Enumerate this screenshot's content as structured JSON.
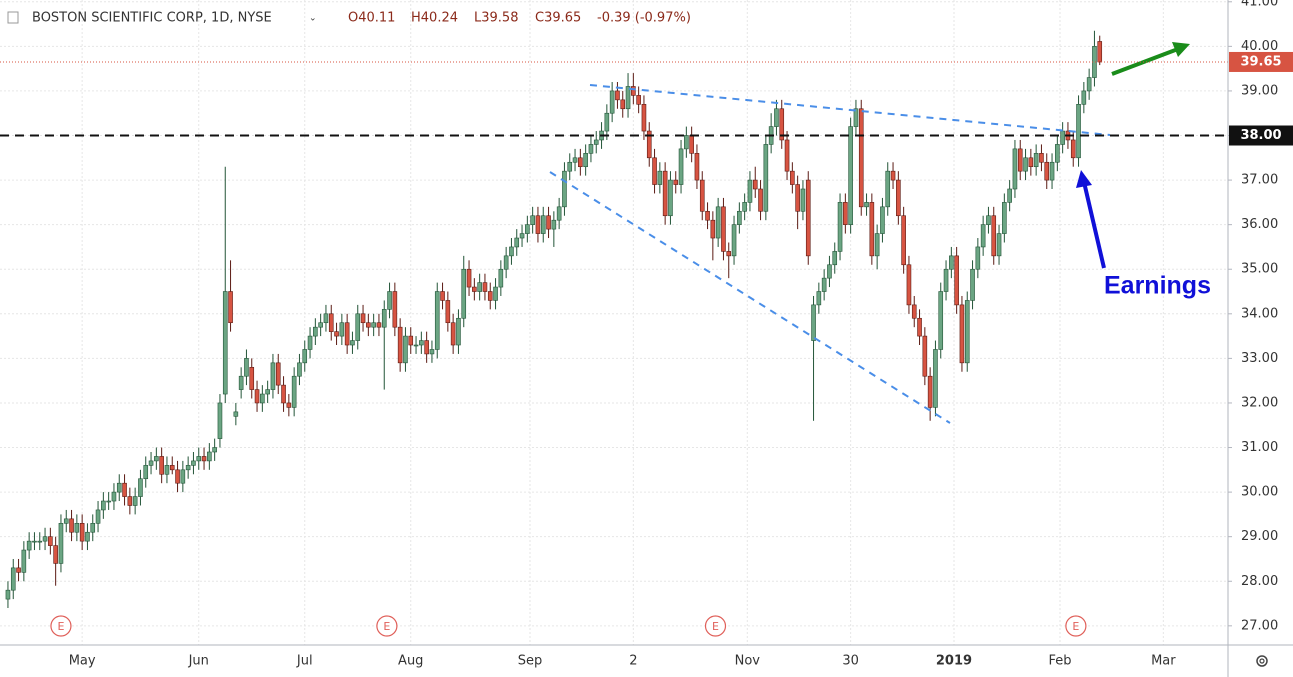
{
  "chart_data": {
    "type": "candlestick",
    "title": "BOSTON SCIENTIFIC CORP, 1D, NYSE",
    "ohlc_readout": [
      "O40.11",
      "H40.24",
      "L39.58",
      "C39.65",
      "-0.39 (-0.97%)"
    ],
    "annotations": [
      "Earnings"
    ],
    "up_color": "#6ba583",
    "down_color": "#d75442",
    "xlim": [
      -1.5,
      230.2
    ],
    "xticks": [
      {
        "value": 14,
        "label": "May"
      },
      {
        "value": 36,
        "label": "Jun"
      },
      {
        "value": 56,
        "label": "Jul"
      },
      {
        "value": 76,
        "label": "Aug"
      },
      {
        "value": 98.5,
        "label": "Sep"
      },
      {
        "value": 118,
        "label": "2"
      },
      {
        "value": 139.5,
        "label": "Nov"
      },
      {
        "value": 159,
        "label": "30"
      },
      {
        "value": 178.5,
        "label": "2019"
      },
      {
        "value": 198.5,
        "label": "Feb"
      },
      {
        "value": 218,
        "label": "Mar"
      }
    ],
    "ylim": [
      26.57,
      41.04
    ],
    "yticks": [
      {
        "value": 27,
        "label": "27.00"
      },
      {
        "value": 28,
        "label": "28.00"
      },
      {
        "value": 29,
        "label": "29.00"
      },
      {
        "value": 30,
        "label": "30.00"
      },
      {
        "value": 31,
        "label": "31.00"
      },
      {
        "value": 32,
        "label": "32.00"
      },
      {
        "value": 33,
        "label": "33.00"
      },
      {
        "value": 34,
        "label": "34.00"
      },
      {
        "value": 35,
        "label": "35.00"
      },
      {
        "value": 36,
        "label": "36.00"
      },
      {
        "value": 37,
        "label": "37.00"
      },
      {
        "value": 38,
        "label": "38.00"
      },
      {
        "value": 39,
        "label": "39.00"
      },
      {
        "value": 40,
        "label": "40.00"
      },
      {
        "value": 41,
        "label": "41.00"
      }
    ],
    "grid": true,
    "level_line": {
      "value": 38,
      "label": "38.00"
    },
    "last_price": {
      "value": 39.65,
      "label": "39.65"
    },
    "events": [
      {
        "x": 10,
        "label": "E"
      },
      {
        "x": 71.5,
        "label": "E"
      },
      {
        "x": 133.5,
        "label": "E"
      },
      {
        "x": 201.5,
        "label": "E"
      }
    ],
    "open": [
      27.6,
      27.8,
      28.3,
      28.2,
      28.7,
      28.9,
      28.9,
      28.9,
      29.0,
      28.8,
      28.4,
      29.3,
      29.4,
      29.1,
      29.3,
      28.9,
      29.1,
      29.3,
      29.6,
      29.8,
      29.8,
      30.0,
      30.2,
      29.9,
      29.7,
      29.9,
      30.3,
      30.6,
      30.7,
      30.8,
      30.4,
      30.6,
      30.5,
      30.2,
      30.5,
      30.6,
      30.7,
      30.8,
      30.7,
      30.9,
      31.2,
      32.2,
      34.5,
      31.7,
      32.3,
      32.6,
      32.8,
      32.3,
      32.0,
      32.2,
      32.3,
      32.9,
      32.4,
      32.0,
      31.9,
      32.6,
      32.9,
      33.2,
      33.5,
      33.7,
      33.8,
      34.0,
      33.6,
      33.5,
      33.8,
      33.3,
      33.4,
      34.0,
      33.8,
      33.7,
      33.8,
      33.7,
      34.1,
      34.5,
      33.7,
      32.9,
      33.5,
      33.3,
      33.3,
      33.4,
      33.1,
      33.2,
      34.5,
      34.3,
      33.8,
      33.3,
      33.9,
      35.0,
      34.6,
      34.5,
      34.7,
      34.5,
      34.3,
      34.6,
      35.0,
      35.3,
      35.5,
      35.7,
      35.8,
      36.0,
      36.2,
      35.8,
      36.2,
      35.9,
      36.1,
      36.4,
      37.2,
      37.4,
      37.5,
      37.3,
      37.6,
      37.8,
      37.9,
      38.1,
      38.5,
      39.0,
      38.8,
      38.6,
      39.1,
      38.9,
      38.7,
      38.1,
      37.5,
      36.9,
      37.2,
      36.2,
      37.0,
      36.9,
      37.7,
      38.0,
      37.6,
      37.0,
      36.3,
      36.1,
      35.7,
      36.4,
      35.4,
      35.3,
      36.0,
      36.3,
      36.5,
      37.0,
      36.8,
      36.3,
      37.8,
      38.2,
      38.6,
      37.9,
      37.2,
      36.9,
      36.3,
      37.0,
      33.4,
      34.2,
      34.5,
      34.8,
      35.1,
      35.4,
      36.5,
      36.0,
      38.2,
      38.6,
      36.4,
      36.5,
      35.3,
      35.8,
      36.4,
      37.2,
      37.0,
      36.2,
      35.1,
      34.2,
      33.9,
      33.5,
      32.6,
      31.9,
      33.2,
      34.5,
      35.0,
      35.3,
      34.2,
      32.9,
      34.3,
      35.0,
      35.5,
      36.0,
      36.2,
      35.3,
      35.8,
      36.5,
      36.8,
      37.7,
      37.2,
      37.5,
      37.3,
      37.6,
      37.4,
      37.0,
      37.4,
      37.8,
      38.1,
      37.9,
      37.5,
      38.7,
      39.0,
      39.3,
      40.11
    ],
    "high": [
      28.0,
      28.5,
      28.5,
      28.9,
      29.1,
      29.1,
      29.1,
      29.2,
      29.2,
      29.0,
      29.5,
      29.6,
      29.6,
      29.5,
      29.5,
      29.3,
      29.5,
      29.8,
      30.0,
      30.0,
      30.2,
      30.4,
      30.4,
      30.1,
      30.1,
      30.5,
      30.8,
      30.9,
      31.0,
      31.0,
      30.8,
      30.8,
      30.7,
      30.7,
      30.8,
      30.9,
      31.0,
      31.0,
      31.1,
      31.2,
      32.2,
      37.3,
      35.2,
      32.0,
      32.8,
      33.2,
      33.0,
      32.5,
      32.4,
      32.5,
      33.1,
      33.1,
      32.6,
      32.2,
      32.8,
      33.1,
      33.4,
      33.7,
      33.9,
      34.0,
      34.2,
      34.2,
      33.8,
      34.0,
      34.0,
      33.6,
      34.2,
      34.2,
      34.0,
      34.0,
      34.0,
      34.3,
      34.7,
      34.7,
      33.9,
      33.7,
      33.7,
      33.5,
      33.6,
      33.6,
      33.4,
      34.7,
      34.7,
      34.5,
      34.0,
      34.1,
      35.3,
      35.2,
      34.8,
      34.9,
      34.9,
      34.7,
      34.8,
      35.2,
      35.5,
      35.7,
      35.9,
      36.0,
      36.2,
      36.4,
      36.4,
      36.4,
      36.4,
      36.3,
      36.6,
      37.4,
      37.6,
      37.7,
      37.7,
      37.8,
      38.0,
      38.1,
      38.3,
      38.7,
      39.2,
      39.2,
      39.0,
      39.4,
      39.4,
      39.1,
      38.9,
      38.3,
      37.7,
      37.4,
      37.4,
      37.2,
      37.2,
      37.9,
      38.2,
      38.2,
      37.8,
      37.2,
      36.5,
      36.3,
      36.6,
      36.6,
      35.6,
      36.2,
      36.5,
      36.7,
      37.2,
      37.3,
      37.0,
      38.0,
      38.5,
      38.8,
      38.8,
      38.1,
      37.4,
      37.1,
      37.0,
      37.2,
      34.4,
      34.7,
      35.0,
      35.3,
      35.6,
      36.7,
      36.7,
      38.4,
      38.8,
      38.8,
      36.7,
      36.7,
      36.0,
      36.6,
      37.4,
      37.4,
      37.2,
      36.4,
      35.3,
      34.4,
      34.1,
      33.7,
      32.8,
      33.4,
      34.7,
      35.2,
      35.5,
      35.5,
      34.4,
      34.5,
      35.2,
      35.7,
      36.2,
      36.4,
      36.4,
      36.0,
      36.7,
      37.0,
      37.9,
      37.9,
      37.7,
      37.7,
      37.8,
      37.8,
      37.6,
      37.6,
      38.0,
      38.3,
      38.3,
      38.1,
      38.9,
      39.2,
      39.5,
      40.35,
      40.24
    ],
    "low": [
      27.4,
      27.6,
      28.0,
      28.0,
      28.5,
      28.7,
      28.7,
      28.7,
      28.6,
      27.9,
      28.2,
      29.1,
      28.9,
      28.9,
      28.7,
      28.7,
      28.9,
      29.1,
      29.4,
      29.6,
      29.6,
      29.8,
      29.7,
      29.5,
      29.5,
      29.7,
      30.1,
      30.4,
      30.5,
      30.2,
      30.2,
      30.4,
      30.0,
      30.0,
      30.3,
      30.4,
      30.5,
      30.5,
      30.5,
      30.7,
      31.0,
      32.0,
      33.6,
      31.5,
      32.1,
      32.4,
      32.1,
      31.8,
      31.8,
      32.0,
      32.1,
      32.2,
      31.8,
      31.7,
      31.7,
      32.4,
      32.7,
      33.0,
      33.3,
      33.5,
      33.6,
      33.4,
      33.3,
      33.3,
      33.1,
      33.1,
      33.2,
      33.6,
      33.5,
      33.5,
      33.5,
      32.3,
      33.9,
      33.5,
      32.7,
      32.7,
      33.1,
      33.1,
      33.1,
      32.9,
      32.9,
      33.0,
      34.1,
      33.6,
      33.1,
      33.1,
      33.7,
      34.4,
      34.3,
      34.3,
      34.3,
      34.1,
      34.1,
      34.4,
      34.8,
      35.1,
      35.3,
      35.5,
      35.6,
      35.8,
      35.6,
      35.6,
      35.7,
      35.5,
      35.9,
      36.2,
      37.0,
      37.2,
      37.1,
      37.1,
      37.4,
      37.6,
      37.7,
      37.9,
      38.3,
      38.6,
      38.4,
      38.4,
      38.7,
      38.5,
      37.9,
      37.3,
      36.7,
      36.7,
      36.0,
      36.0,
      36.7,
      36.7,
      37.5,
      37.4,
      36.8,
      36.1,
      35.9,
      35.2,
      35.5,
      35.2,
      34.8,
      35.1,
      35.8,
      36.1,
      36.3,
      36.6,
      36.1,
      36.1,
      37.6,
      38.0,
      37.7,
      37.0,
      36.7,
      35.9,
      36.1,
      35.1,
      31.6,
      34.0,
      34.3,
      34.6,
      34.9,
      35.2,
      35.8,
      35.8,
      38.0,
      36.2,
      36.2,
      35.1,
      35.0,
      35.6,
      36.2,
      36.8,
      36.0,
      34.9,
      34.0,
      33.7,
      33.3,
      32.4,
      31.6,
      31.7,
      33.0,
      34.3,
      34.8,
      34.0,
      32.7,
      32.7,
      34.1,
      34.8,
      35.3,
      35.8,
      35.1,
      35.1,
      35.6,
      36.3,
      36.6,
      37.0,
      37.0,
      37.1,
      37.1,
      37.2,
      36.8,
      36.8,
      37.2,
      37.6,
      37.7,
      37.3,
      37.3,
      38.5,
      38.8,
      39.1,
      39.58
    ],
    "close": [
      27.8,
      28.3,
      28.2,
      28.7,
      28.9,
      28.9,
      28.9,
      29.0,
      28.8,
      28.4,
      29.3,
      29.4,
      29.1,
      29.3,
      28.9,
      29.1,
      29.3,
      29.6,
      29.8,
      29.8,
      30.0,
      30.2,
      29.9,
      29.7,
      29.9,
      30.3,
      30.6,
      30.7,
      30.8,
      30.4,
      30.6,
      30.5,
      30.2,
      30.5,
      30.6,
      30.7,
      30.8,
      30.7,
      30.9,
      31.0,
      32.0,
      34.5,
      33.8,
      31.8,
      32.6,
      33.0,
      32.3,
      32.0,
      32.2,
      32.3,
      32.9,
      32.4,
      32.0,
      31.9,
      32.6,
      32.9,
      33.2,
      33.5,
      33.7,
      33.8,
      34.0,
      33.6,
      33.5,
      33.8,
      33.3,
      33.4,
      34.0,
      33.8,
      33.7,
      33.8,
      33.7,
      34.1,
      34.5,
      33.7,
      32.9,
      33.5,
      33.3,
      33.3,
      33.4,
      33.1,
      33.2,
      34.5,
      34.3,
      33.8,
      33.3,
      33.9,
      35.0,
      34.6,
      34.5,
      34.7,
      34.5,
      34.3,
      34.6,
      35.0,
      35.3,
      35.5,
      35.7,
      35.8,
      36.0,
      36.2,
      35.8,
      36.2,
      35.9,
      36.1,
      36.4,
      37.2,
      37.4,
      37.5,
      37.3,
      37.6,
      37.8,
      37.9,
      38.1,
      38.5,
      39.0,
      38.8,
      38.6,
      39.1,
      38.9,
      38.7,
      38.1,
      37.5,
      36.9,
      37.2,
      36.2,
      37.0,
      36.9,
      37.7,
      38.0,
      37.6,
      37.0,
      36.3,
      36.1,
      35.7,
      36.4,
      35.4,
      35.3,
      36.0,
      36.3,
      36.5,
      37.0,
      36.8,
      36.3,
      37.8,
      38.2,
      38.6,
      37.9,
      37.2,
      36.9,
      36.3,
      36.8,
      35.3,
      34.2,
      34.5,
      34.8,
      35.1,
      35.4,
      36.5,
      36.0,
      38.2,
      38.6,
      36.4,
      36.5,
      35.3,
      35.8,
      36.4,
      37.2,
      37.0,
      36.2,
      35.1,
      34.2,
      33.9,
      33.5,
      32.6,
      31.9,
      33.2,
      34.5,
      35.0,
      35.3,
      34.2,
      32.9,
      34.3,
      35.0,
      35.5,
      36.0,
      36.2,
      35.3,
      35.8,
      36.5,
      36.8,
      37.7,
      37.2,
      37.5,
      37.3,
      37.6,
      37.4,
      37.0,
      37.4,
      37.8,
      38.1,
      37.9,
      37.5,
      38.7,
      39.0,
      39.3,
      40.0,
      39.65
    ]
  }
}
